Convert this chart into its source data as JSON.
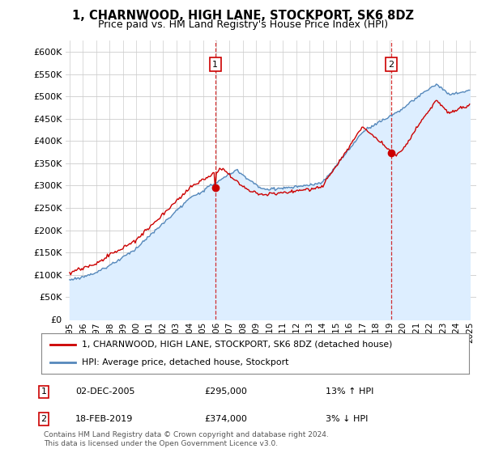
{
  "title": "1, CHARNWOOD, HIGH LANE, STOCKPORT, SK6 8DZ",
  "subtitle": "Price paid vs. HM Land Registry's House Price Index (HPI)",
  "legend_label1": "1, CHARNWOOD, HIGH LANE, STOCKPORT, SK6 8DZ (detached house)",
  "legend_label2": "HPI: Average price, detached house, Stockport",
  "annotation1_label": "1",
  "annotation1_date": "02-DEC-2005",
  "annotation1_price": "£295,000",
  "annotation1_hpi": "13% ↑ HPI",
  "annotation2_label": "2",
  "annotation2_date": "18-FEB-2019",
  "annotation2_price": "£374,000",
  "annotation2_hpi": "3% ↓ HPI",
  "footer": "Contains HM Land Registry data © Crown copyright and database right 2024.\nThis data is licensed under the Open Government Licence v3.0.",
  "price_color": "#cc0000",
  "hpi_color": "#5588bb",
  "hpi_fill_color": "#ddeeff",
  "marker1_x_year": 2005.92,
  "marker2_x_year": 2019.13,
  "marker1_y": 295000,
  "marker2_y": 374000,
  "ylim": [
    0,
    625000
  ],
  "xlim_start": 1994.7,
  "xlim_end": 2025.5,
  "yticks": [
    0,
    50000,
    100000,
    150000,
    200000,
    250000,
    300000,
    350000,
    400000,
    450000,
    500000,
    550000,
    600000
  ],
  "xticks": [
    1995,
    1996,
    1997,
    1998,
    1999,
    2000,
    2001,
    2002,
    2003,
    2004,
    2005,
    2006,
    2007,
    2008,
    2009,
    2010,
    2011,
    2012,
    2013,
    2014,
    2015,
    2016,
    2017,
    2018,
    2019,
    2020,
    2021,
    2022,
    2023,
    2024,
    2025
  ],
  "background_color": "#ffffff",
  "grid_color": "#cccccc"
}
